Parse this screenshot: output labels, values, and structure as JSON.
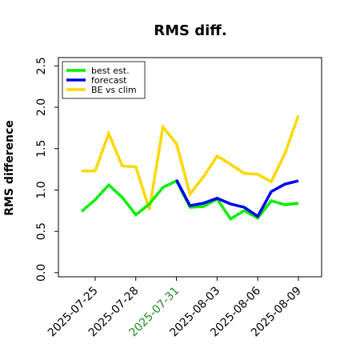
{
  "chart_data": {
    "type": "line",
    "title": "RMS diff.",
    "xlabel": "",
    "ylabel": "RMS difference",
    "x": [
      "2025-07-24",
      "2025-07-25",
      "2025-07-26",
      "2025-07-27",
      "2025-07-28",
      "2025-07-29",
      "2025-07-30",
      "2025-07-31",
      "2025-08-01",
      "2025-08-02",
      "2025-08-03",
      "2025-08-04",
      "2025-08-05",
      "2025-08-06",
      "2025-08-07",
      "2025-08-08",
      "2025-08-09"
    ],
    "xticks": [
      "2025-07-25",
      "2025-07-28",
      "2025-07-31",
      "2025-08-03",
      "2025-08-06",
      "2025-08-09"
    ],
    "xtick_colors": [
      "#000000",
      "#000000",
      "#228B22",
      "#000000",
      "#000000",
      "#000000"
    ],
    "ylim": [
      -0.05,
      2.6
    ],
    "yticks": [
      "0.0",
      "0.5",
      "1.0",
      "1.5",
      "2.0",
      "2.5"
    ],
    "legend_position": "upper-left",
    "series": [
      {
        "name": "best est.",
        "color": "#00ee00",
        "values": [
          0.74,
          0.88,
          1.06,
          0.91,
          0.7,
          0.83,
          1.03,
          1.11,
          0.79,
          0.8,
          0.89,
          0.65,
          0.75,
          0.66,
          0.87,
          0.82,
          0.84
        ]
      },
      {
        "name": "forecast",
        "color": "#0000ee",
        "values": [
          null,
          null,
          null,
          null,
          null,
          null,
          null,
          1.12,
          0.81,
          0.84,
          0.9,
          0.83,
          0.79,
          0.68,
          0.98,
          1.07,
          1.11
        ]
      },
      {
        "name": "BE vs clim",
        "color": "#ffd700",
        "values": [
          1.23,
          1.23,
          1.68,
          1.29,
          1.28,
          0.76,
          1.76,
          1.56,
          0.95,
          1.16,
          1.41,
          1.31,
          1.2,
          1.19,
          1.1,
          1.44,
          1.9
        ]
      }
    ]
  }
}
